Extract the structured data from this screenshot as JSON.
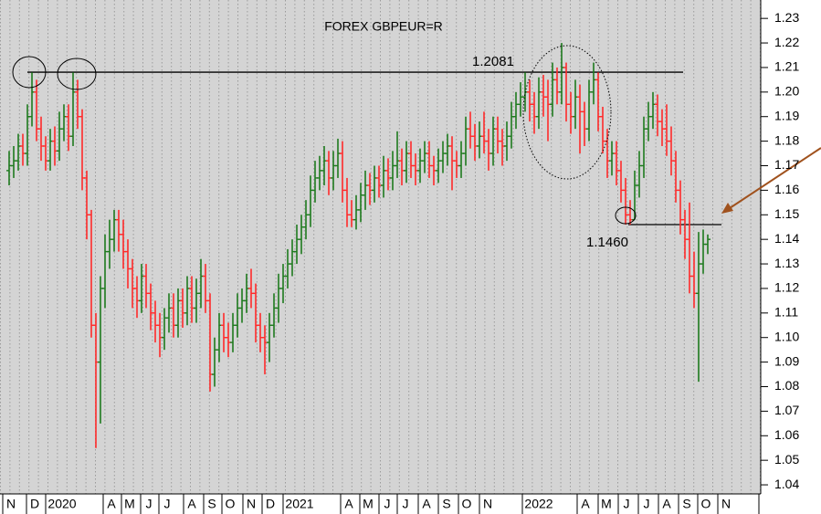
{
  "chart_data": {
    "type": "ohlc",
    "title": "FOREX GBPEUR=R",
    "x_labels": [
      "N",
      "D",
      "2020",
      "A",
      "M",
      "J",
      "J",
      "A",
      "S",
      "O",
      "N",
      "D",
      "2021",
      "A",
      "M",
      "J",
      "J",
      "A",
      "S",
      "O",
      "N",
      "2022",
      "A",
      "M",
      "J",
      "J",
      "A",
      "S",
      "O",
      "N"
    ],
    "open": [
      1.168,
      1.17,
      1.172,
      1.178,
      1.175,
      1.19,
      1.2,
      1.185,
      1.178,
      1.172,
      1.18,
      1.176,
      1.185,
      1.19,
      1.182,
      1.2,
      1.19,
      1.165,
      1.15,
      1.105,
      1.09,
      1.12,
      1.135,
      1.14,
      1.148,
      1.142,
      1.135,
      1.128,
      1.12,
      1.115,
      1.125,
      1.118,
      1.11,
      1.105,
      1.1,
      1.108,
      1.112,
      1.105,
      1.115,
      1.11,
      1.12,
      1.112,
      1.118,
      1.125,
      1.115,
      1.085,
      1.095,
      1.105,
      1.1,
      1.098,
      1.105,
      1.112,
      1.115,
      1.12,
      1.118,
      1.105,
      1.1,
      1.098,
      1.105,
      1.112,
      1.12,
      1.125,
      1.13,
      1.135,
      1.14,
      1.145,
      1.15,
      1.16,
      1.165,
      1.168,
      1.172,
      1.165,
      1.17,
      1.175,
      1.16,
      1.15,
      1.148,
      1.152,
      1.158,
      1.162,
      1.16,
      1.165,
      1.162,
      1.168,
      1.165,
      1.17,
      1.172,
      1.168,
      1.175,
      1.17,
      1.168,
      1.172,
      1.175,
      1.17,
      1.168,
      1.172,
      1.175,
      1.178,
      1.172,
      1.17,
      1.175,
      1.185,
      1.182,
      1.178,
      1.182,
      1.18,
      1.175,
      1.185,
      1.18,
      1.178,
      1.182,
      1.19,
      1.195,
      1.198,
      1.2,
      1.195,
      1.19,
      1.2,
      1.198,
      1.195,
      1.205,
      1.2,
      1.21,
      1.195,
      1.19,
      1.198,
      1.192,
      1.185,
      1.2,
      1.205,
      1.19,
      1.18,
      1.172,
      1.175,
      1.168,
      1.16,
      1.15,
      1.148,
      1.162,
      1.17,
      1.185,
      1.19,
      1.195,
      1.188,
      1.185,
      1.18,
      1.172,
      1.16,
      1.148,
      1.14,
      1.125,
      1.118,
      1.13,
      1.138
    ],
    "high": [
      1.176,
      1.178,
      1.183,
      1.183,
      1.195,
      1.208,
      1.205,
      1.19,
      1.182,
      1.185,
      1.186,
      1.192,
      1.195,
      1.195,
      1.208,
      1.205,
      1.193,
      1.168,
      1.152,
      1.11,
      1.125,
      1.142,
      1.148,
      1.152,
      1.152,
      1.148,
      1.14,
      1.132,
      1.125,
      1.13,
      1.13,
      1.122,
      1.115,
      1.11,
      1.112,
      1.118,
      1.118,
      1.12,
      1.12,
      1.125,
      1.125,
      1.124,
      1.132,
      1.13,
      1.118,
      1.1,
      1.11,
      1.11,
      1.106,
      1.11,
      1.118,
      1.12,
      1.126,
      1.128,
      1.122,
      1.11,
      1.105,
      1.11,
      1.118,
      1.126,
      1.13,
      1.136,
      1.14,
      1.146,
      1.15,
      1.156,
      1.166,
      1.172,
      1.174,
      1.178,
      1.176,
      1.176,
      1.181,
      1.18,
      1.165,
      1.156,
      1.158,
      1.163,
      1.168,
      1.167,
      1.17,
      1.17,
      1.174,
      1.173,
      1.176,
      1.184,
      1.177,
      1.18,
      1.18,
      1.175,
      1.177,
      1.18,
      1.18,
      1.174,
      1.177,
      1.18,
      1.183,
      1.182,
      1.176,
      1.18,
      1.19,
      1.192,
      1.187,
      1.188,
      1.192,
      1.185,
      1.19,
      1.19,
      1.185,
      1.188,
      1.196,
      1.2,
      1.204,
      1.208,
      1.205,
      1.2,
      1.206,
      1.207,
      1.205,
      1.212,
      1.21,
      1.22,
      1.212,
      1.2,
      1.205,
      1.203,
      1.196,
      1.205,
      1.212,
      1.208,
      1.194,
      1.185,
      1.18,
      1.18,
      1.172,
      1.165,
      1.156,
      1.168,
      1.176,
      1.19,
      1.196,
      1.2,
      1.199,
      1.193,
      1.195,
      1.186,
      1.176,
      1.164,
      1.152,
      1.155,
      1.135,
      1.143,
      1.144,
      1.142
    ],
    "low": [
      1.162,
      1.165,
      1.168,
      1.17,
      1.17,
      1.186,
      1.18,
      1.172,
      1.168,
      1.168,
      1.17,
      1.172,
      1.18,
      1.176,
      1.178,
      1.185,
      1.16,
      1.14,
      1.1,
      1.055,
      1.065,
      1.112,
      1.128,
      1.135,
      1.135,
      1.128,
      1.12,
      1.112,
      1.108,
      1.11,
      1.112,
      1.103,
      1.098,
      1.092,
      1.095,
      1.102,
      1.1,
      1.1,
      1.104,
      1.105,
      1.106,
      1.106,
      1.112,
      1.11,
      1.078,
      1.08,
      1.09,
      1.094,
      1.092,
      1.094,
      1.1,
      1.106,
      1.11,
      1.112,
      1.098,
      1.094,
      1.085,
      1.09,
      1.1,
      1.106,
      1.114,
      1.12,
      1.125,
      1.13,
      1.134,
      1.14,
      1.145,
      1.155,
      1.16,
      1.162,
      1.158,
      1.16,
      1.165,
      1.155,
      1.145,
      1.145,
      1.144,
      1.147,
      1.152,
      1.154,
      1.155,
      1.157,
      1.157,
      1.16,
      1.16,
      1.165,
      1.162,
      1.163,
      1.165,
      1.162,
      1.163,
      1.167,
      1.165,
      1.162,
      1.163,
      1.167,
      1.17,
      1.16,
      1.165,
      1.165,
      1.17,
      1.177,
      1.172,
      1.173,
      1.175,
      1.168,
      1.17,
      1.175,
      1.17,
      1.172,
      1.177,
      1.185,
      1.19,
      1.192,
      1.188,
      1.183,
      1.185,
      1.19,
      1.18,
      1.19,
      1.195,
      1.195,
      1.188,
      1.183,
      1.185,
      1.175,
      1.178,
      1.18,
      1.195,
      1.184,
      1.175,
      1.165,
      1.166,
      1.162,
      1.155,
      1.146,
      1.146,
      1.148,
      1.157,
      1.165,
      1.18,
      1.185,
      1.182,
      1.178,
      1.174,
      1.166,
      1.155,
      1.142,
      1.132,
      1.118,
      1.112,
      1.082,
      1.126,
      1.134
    ],
    "close": [
      1.17,
      1.172,
      1.178,
      1.175,
      1.19,
      1.2,
      1.185,
      1.178,
      1.172,
      1.18,
      1.176,
      1.185,
      1.19,
      1.182,
      1.2,
      1.19,
      1.165,
      1.15,
      1.105,
      1.09,
      1.12,
      1.135,
      1.14,
      1.148,
      1.142,
      1.135,
      1.128,
      1.12,
      1.115,
      1.125,
      1.118,
      1.11,
      1.105,
      1.1,
      1.108,
      1.112,
      1.105,
      1.115,
      1.11,
      1.12,
      1.112,
      1.118,
      1.125,
      1.115,
      1.085,
      1.095,
      1.105,
      1.1,
      1.098,
      1.105,
      1.112,
      1.115,
      1.12,
      1.118,
      1.105,
      1.1,
      1.098,
      1.105,
      1.112,
      1.12,
      1.125,
      1.13,
      1.135,
      1.14,
      1.145,
      1.15,
      1.16,
      1.165,
      1.168,
      1.172,
      1.165,
      1.17,
      1.175,
      1.16,
      1.15,
      1.148,
      1.152,
      1.158,
      1.162,
      1.16,
      1.165,
      1.162,
      1.168,
      1.165,
      1.17,
      1.172,
      1.168,
      1.175,
      1.17,
      1.168,
      1.172,
      1.175,
      1.17,
      1.168,
      1.172,
      1.175,
      1.178,
      1.172,
      1.17,
      1.175,
      1.185,
      1.182,
      1.178,
      1.182,
      1.18,
      1.175,
      1.185,
      1.18,
      1.178,
      1.182,
      1.19,
      1.195,
      1.198,
      1.2,
      1.195,
      1.19,
      1.2,
      1.198,
      1.195,
      1.205,
      1.2,
      1.21,
      1.195,
      1.19,
      1.198,
      1.192,
      1.185,
      1.2,
      1.205,
      1.19,
      1.18,
      1.172,
      1.175,
      1.168,
      1.16,
      1.15,
      1.148,
      1.162,
      1.17,
      1.185,
      1.19,
      1.195,
      1.188,
      1.185,
      1.18,
      1.172,
      1.16,
      1.148,
      1.14,
      1.125,
      1.118,
      1.13,
      1.138,
      1.14
    ],
    "up_color": "#1e7a1e",
    "down_color": "#ff2a2a",
    "levels": [
      {
        "value": 1.2081,
        "label": "1.2081"
      },
      {
        "value": 1.146,
        "label": "1.1460"
      }
    ],
    "ylim": [
      1.0363,
      1.2375
    ],
    "yticks": [
      1.04,
      1.05,
      1.06,
      1.07,
      1.08,
      1.09,
      {
        "value": 1.1,
        "label": "1.10"
      },
      1.11,
      1.12,
      1.13,
      1.14,
      1.15,
      1.16,
      1.17,
      1.18,
      1.19,
      {
        "value": 1.2,
        "label": "1.20"
      },
      1.21,
      1.22,
      1.23
    ]
  }
}
